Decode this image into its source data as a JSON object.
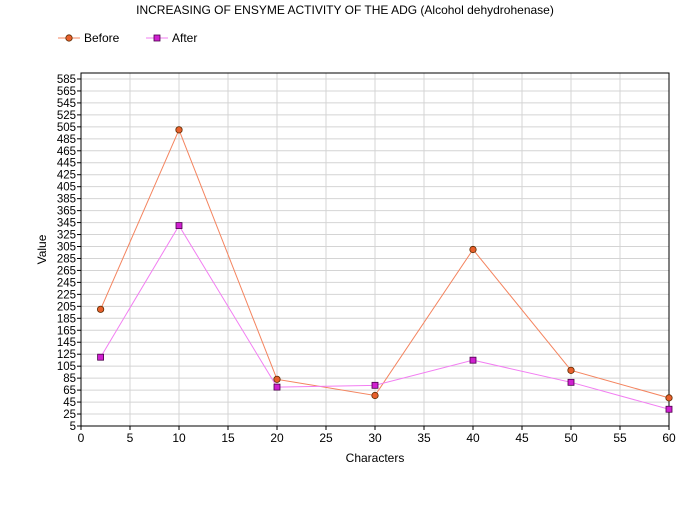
{
  "chart_data": {
    "type": "line",
    "title": "INCREASING OF ENSYME ACTIVITY OF THE ADG (Alcohol dehydrohenase)",
    "xlabel": "Characters",
    "ylabel": "Value",
    "xlim": [
      0,
      60
    ],
    "ylim": [
      5,
      595
    ],
    "x_ticks": [
      0,
      5,
      10,
      15,
      20,
      25,
      30,
      35,
      40,
      45,
      50,
      55,
      60
    ],
    "y_ticks": [
      5,
      25,
      45,
      65,
      85,
      105,
      125,
      145,
      165,
      185,
      205,
      225,
      245,
      265,
      285,
      305,
      325,
      345,
      365,
      385,
      405,
      425,
      445,
      465,
      485,
      505,
      525,
      545,
      565,
      585
    ],
    "grid": true,
    "legend_position": "top-left",
    "series": [
      {
        "name": "Before",
        "color": "#f4845f",
        "marker": "circle",
        "marker_fill": "#e8602c",
        "x": [
          2,
          10,
          20,
          30,
          40,
          50,
          60
        ],
        "y": [
          200,
          500,
          83,
          56,
          300,
          98,
          52
        ]
      },
      {
        "name": "After",
        "color": "#f27ef2",
        "marker": "square",
        "marker_fill": "#d020d0",
        "x": [
          2,
          10,
          20,
          30,
          40,
          50,
          60
        ],
        "y": [
          120,
          340,
          70,
          73,
          115,
          78,
          33
        ]
      }
    ]
  }
}
